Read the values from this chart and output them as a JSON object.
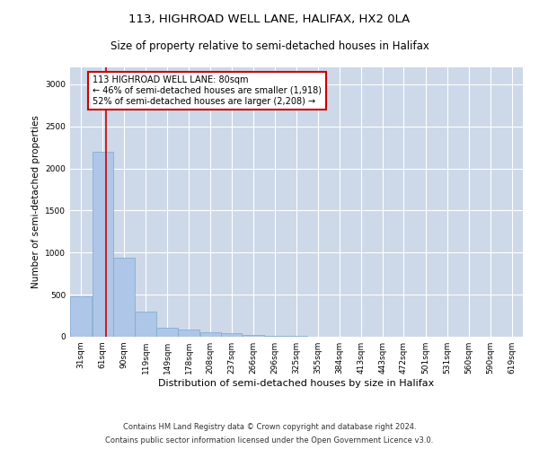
{
  "title1": "113, HIGHROAD WELL LANE, HALIFAX, HX2 0LA",
  "title2": "Size of property relative to semi-detached houses in Halifax",
  "xlabel": "Distribution of semi-detached houses by size in Halifax",
  "ylabel": "Number of semi-detached properties",
  "footnote1": "Contains HM Land Registry data © Crown copyright and database right 2024.",
  "footnote2": "Contains public sector information licensed under the Open Government Licence v3.0.",
  "annotation_line1": "113 HIGHROAD WELL LANE: 80sqm",
  "annotation_line2": "← 46% of semi-detached houses are smaller (1,918)",
  "annotation_line3": "52% of semi-detached houses are larger (2,208) →",
  "bar_color": "#aec6e8",
  "bar_edge_color": "#7aabcc",
  "vline_color": "#cc0000",
  "annotation_box_color": "#cc0000",
  "background_color": "#ffffff",
  "grid_color": "#cdd8e8",
  "categories": [
    "31sqm",
    "61sqm",
    "90sqm",
    "119sqm",
    "149sqm",
    "178sqm",
    "208sqm",
    "237sqm",
    "266sqm",
    "296sqm",
    "325sqm",
    "355sqm",
    "384sqm",
    "413sqm",
    "443sqm",
    "472sqm",
    "501sqm",
    "531sqm",
    "560sqm",
    "590sqm",
    "619sqm"
  ],
  "values": [
    480,
    2200,
    940,
    300,
    105,
    90,
    55,
    40,
    25,
    15,
    10,
    5,
    2,
    1,
    1,
    1,
    1,
    1,
    1,
    1,
    1
  ],
  "bin_edges": [
    31,
    61,
    90,
    119,
    149,
    178,
    208,
    237,
    266,
    296,
    325,
    355,
    384,
    413,
    443,
    472,
    501,
    531,
    560,
    590,
    619,
    649
  ],
  "ylim": [
    0,
    3200
  ],
  "yticks": [
    0,
    500,
    1000,
    1500,
    2000,
    2500,
    3000
  ],
  "vline_x": 80,
  "figsize": [
    6.0,
    5.0
  ],
  "dpi": 100
}
